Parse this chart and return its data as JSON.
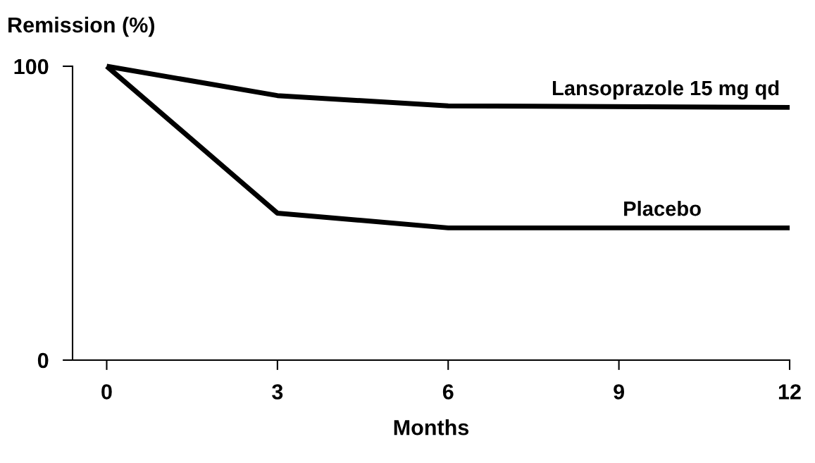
{
  "chart_data": {
    "type": "line",
    "xlabel": "Months",
    "ylabel": "Remission (%)",
    "x": [
      0,
      3,
      6,
      12
    ],
    "series": [
      {
        "name": "Lansoprazole 15 mg qd",
        "color": "#000000",
        "values": [
          100,
          90,
          86.5,
          86
        ]
      },
      {
        "name": "Placebo",
        "color": "#000000",
        "values": [
          100,
          50,
          45,
          45
        ]
      }
    ],
    "xlim": [
      -0.6,
      12
    ],
    "xticks": [
      0,
      3,
      6,
      9,
      12
    ],
    "ylim": [
      0,
      100
    ],
    "yticks": [
      0,
      100
    ],
    "grid": false,
    "legend": false,
    "marker": "none",
    "line_style": "solid"
  }
}
